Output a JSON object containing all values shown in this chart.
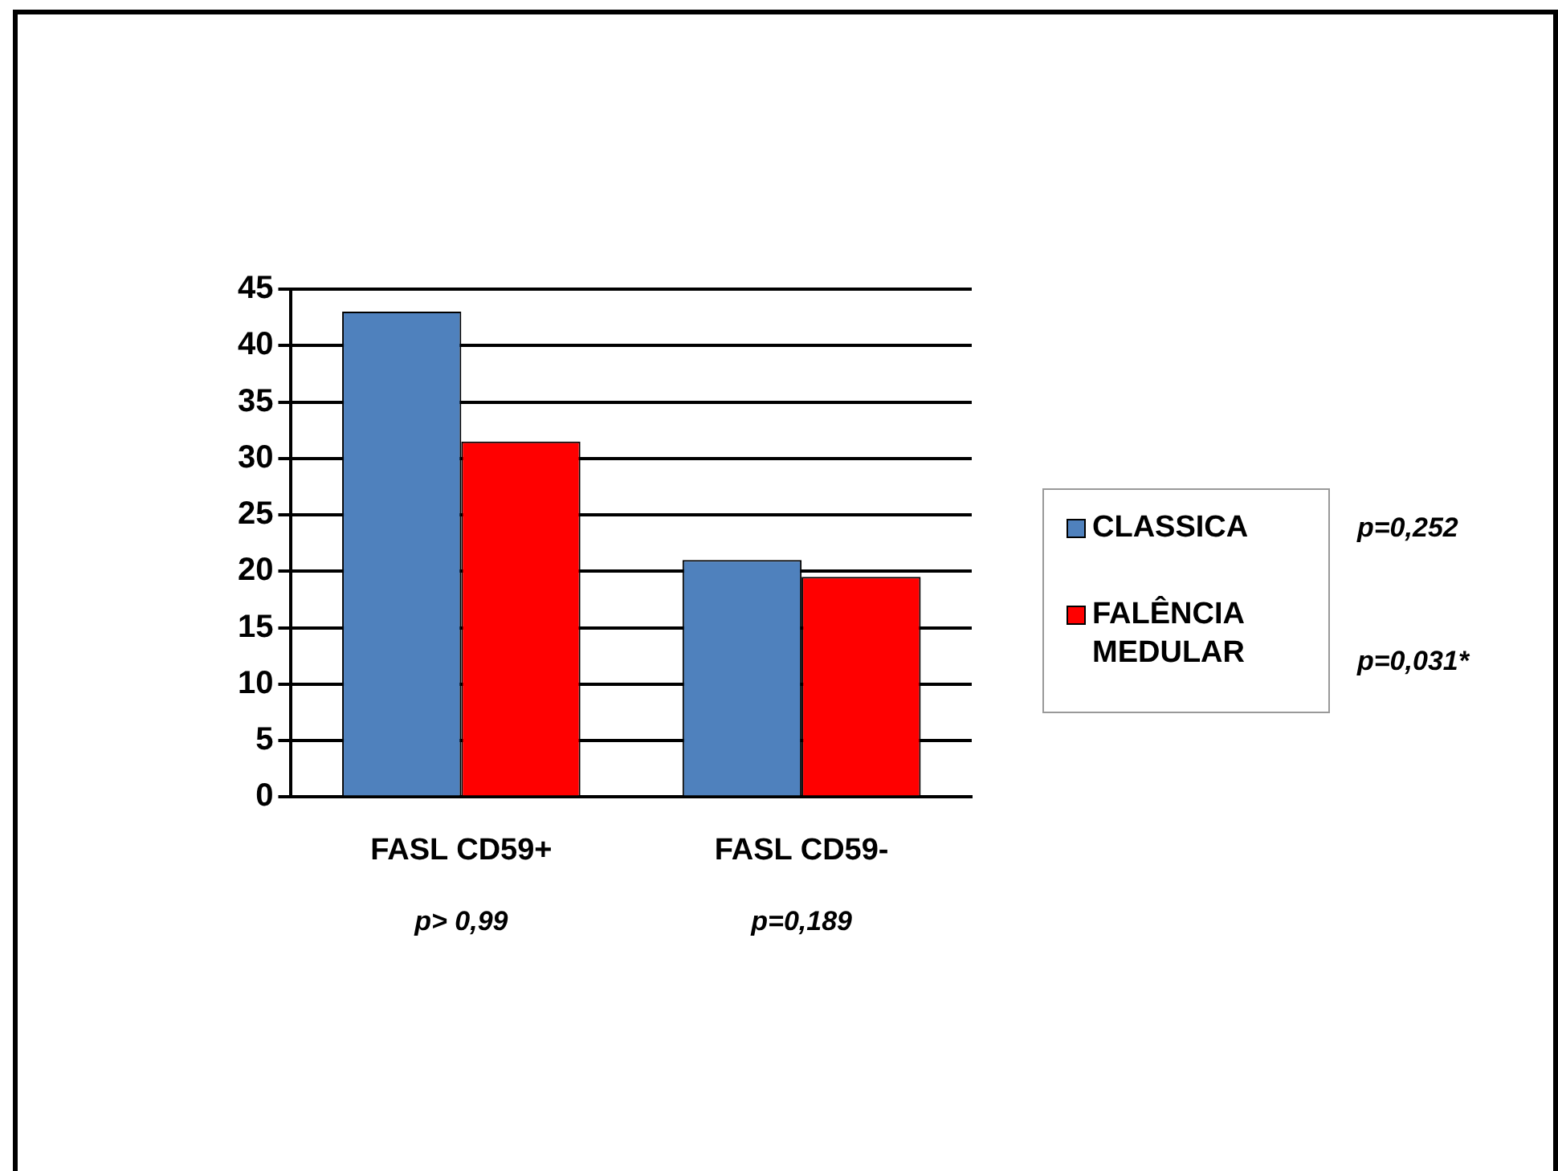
{
  "chart_data": {
    "type": "bar",
    "categories": [
      "FASL CD59+",
      "FASL CD59-"
    ],
    "series": [
      {
        "name": "CLASSICA",
        "color": "#4f81bd",
        "values": [
          43,
          21
        ]
      },
      {
        "name": "FALÊNCIA MEDULAR",
        "color": "#ff0000",
        "values": [
          31.5,
          19.5
        ]
      }
    ],
    "ylim": [
      0,
      45
    ],
    "yticks": [
      0,
      5,
      10,
      15,
      20,
      25,
      30,
      35,
      40,
      45
    ],
    "grid": "y",
    "legend": "right",
    "annotations": [
      "p> 0,99",
      "p=0,189",
      "p=0,252",
      "p=0,031*"
    ]
  }
}
